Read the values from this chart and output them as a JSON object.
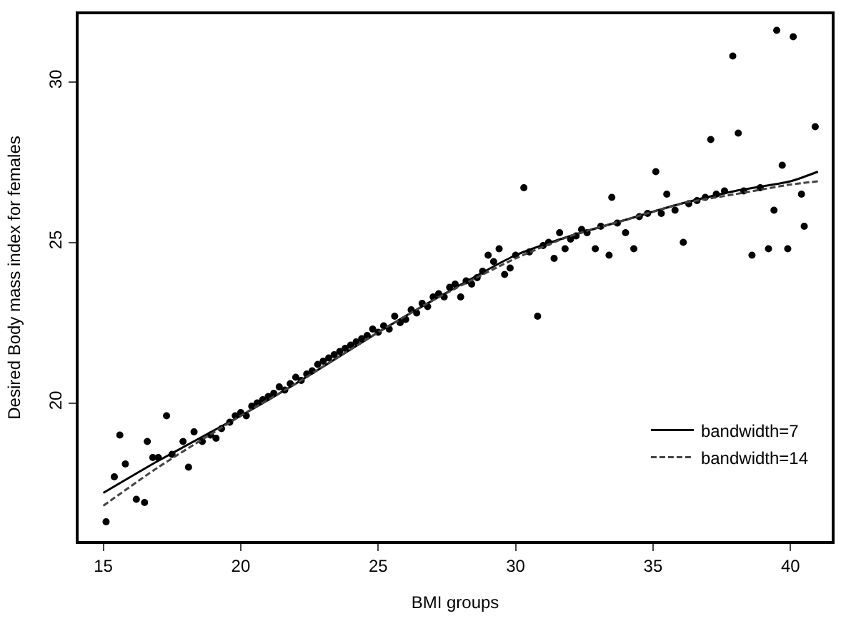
{
  "chart_data": {
    "type": "scatter",
    "xlabel": "BMI groups",
    "ylabel": "Desired Body mass index for females",
    "xlim": [
      14.1,
      41.5
    ],
    "ylim": [
      15.7,
      32.1
    ],
    "xticks": [
      15,
      20,
      25,
      30,
      35,
      40
    ],
    "yticks": [
      20,
      25,
      30
    ],
    "legend": "bottom right",
    "series": [
      {
        "marker": "circle",
        "color": "#000000",
        "x": [
          15.1,
          15.4,
          15.6,
          15.8,
          16.2,
          16.5,
          16.6,
          16.8,
          17.0,
          17.3,
          17.5,
          17.9,
          18.1,
          18.3,
          18.6,
          18.9,
          19.1,
          19.3,
          19.6,
          19.8,
          20.0,
          20.2,
          20.4,
          20.6,
          20.8,
          21.0,
          21.2,
          21.4,
          21.6,
          21.8,
          22.0,
          22.2,
          22.4,
          22.6,
          22.8,
          23.0,
          23.2,
          23.4,
          23.6,
          23.8,
          24.0,
          24.2,
          24.4,
          24.6,
          24.8,
          25.0,
          25.2,
          25.4,
          25.6,
          25.8,
          26.0,
          26.2,
          26.4,
          26.6,
          26.8,
          27.0,
          27.2,
          27.4,
          27.6,
          27.8,
          28.0,
          28.2,
          28.4,
          28.6,
          28.8,
          29.0,
          29.2,
          29.4,
          29.6,
          29.8,
          30.0,
          30.3,
          30.5,
          30.8,
          31.0,
          31.2,
          31.4,
          31.6,
          31.8,
          32.0,
          32.2,
          32.4,
          32.6,
          32.9,
          33.1,
          33.4,
          33.5,
          33.7,
          34.0,
          34.3,
          34.5,
          34.8,
          35.1,
          35.3,
          35.5,
          35.8,
          36.1,
          36.3,
          36.6,
          36.9,
          37.1,
          37.3,
          37.6,
          37.9,
          38.1,
          38.3,
          38.6,
          38.9,
          39.2,
          39.4,
          39.5,
          39.7,
          39.9,
          40.1,
          40.4,
          40.5,
          40.9
        ],
        "values": [
          16.3,
          17.7,
          19.0,
          18.1,
          17.0,
          16.9,
          18.8,
          18.3,
          18.3,
          19.6,
          18.4,
          18.8,
          18.0,
          19.1,
          18.8,
          19.0,
          18.9,
          19.2,
          19.4,
          19.6,
          19.7,
          19.6,
          19.9,
          20.0,
          20.1,
          20.2,
          20.3,
          20.5,
          20.4,
          20.6,
          20.8,
          20.7,
          20.9,
          21.0,
          21.2,
          21.3,
          21.4,
          21.5,
          21.6,
          21.7,
          21.8,
          21.9,
          22.0,
          22.1,
          22.3,
          22.2,
          22.4,
          22.3,
          22.7,
          22.5,
          22.6,
          22.9,
          22.8,
          23.1,
          23.0,
          23.3,
          23.4,
          23.3,
          23.6,
          23.7,
          23.3,
          23.8,
          23.7,
          23.9,
          24.1,
          24.6,
          24.4,
          24.8,
          24.0,
          24.2,
          24.6,
          26.7,
          24.7,
          22.7,
          24.9,
          25.0,
          24.5,
          25.3,
          24.8,
          25.1,
          25.2,
          25.4,
          25.3,
          24.8,
          25.5,
          24.6,
          26.4,
          25.6,
          25.3,
          24.8,
          25.8,
          25.9,
          27.2,
          25.9,
          26.5,
          26.0,
          25.0,
          26.2,
          26.3,
          26.4,
          28.2,
          26.5,
          26.6,
          30.8,
          28.4,
          26.6,
          24.6,
          26.7,
          24.8,
          26.0,
          31.6,
          27.4,
          24.8,
          31.4,
          26.5,
          25.5,
          28.6
        ]
      },
      {
        "type": "line",
        "name": "bandwidth=7",
        "line_style": "solid",
        "color": "#000000",
        "x": [
          15,
          17,
          20,
          22,
          25,
          27,
          30,
          32,
          34,
          36,
          38,
          40,
          41
        ],
        "values": [
          17.2,
          18.2,
          19.6,
          20.6,
          22.2,
          23.2,
          24.6,
          25.2,
          25.7,
          26.2,
          26.6,
          26.9,
          27.2
        ]
      },
      {
        "type": "line",
        "name": "bandwidth=14",
        "line_style": "dashed",
        "color": "#444444",
        "x": [
          15,
          17,
          20,
          22,
          25,
          27,
          30,
          32,
          34,
          36,
          38,
          40,
          41
        ],
        "values": [
          16.8,
          18.0,
          19.6,
          20.6,
          22.2,
          23.2,
          24.5,
          25.2,
          25.7,
          26.2,
          26.5,
          26.8,
          26.9
        ]
      }
    ]
  }
}
